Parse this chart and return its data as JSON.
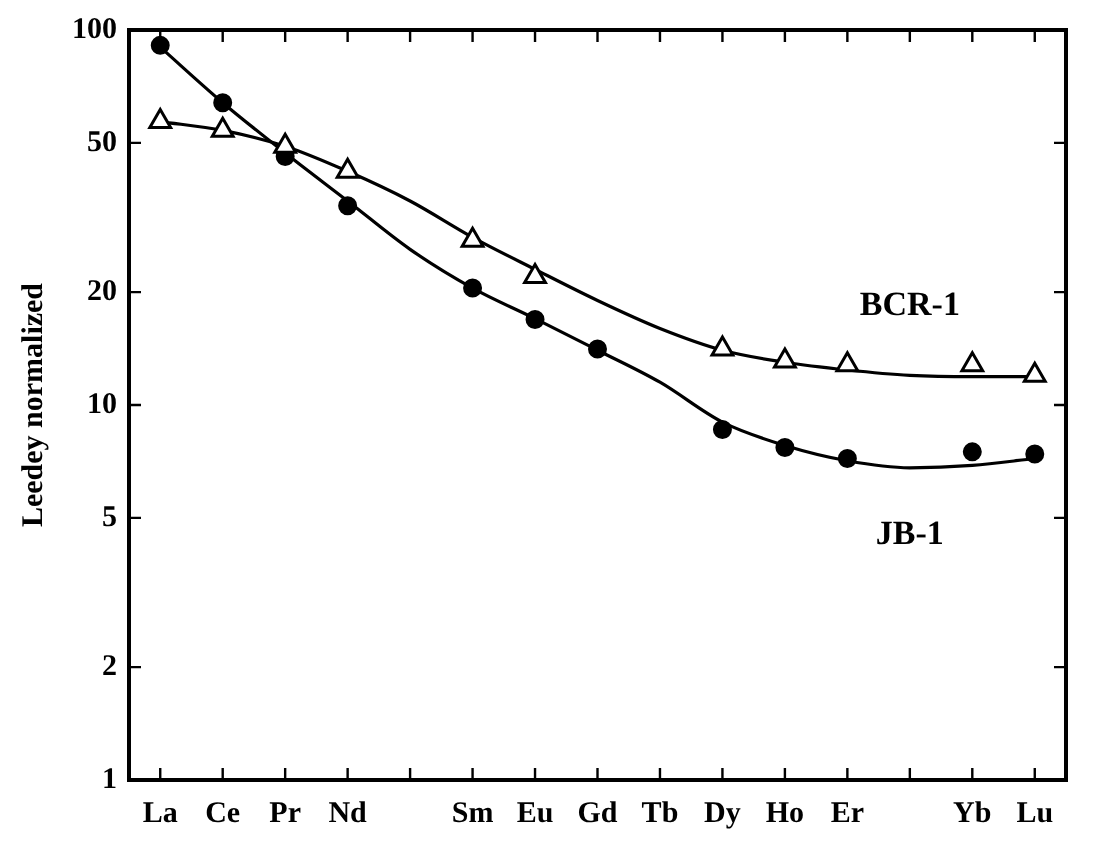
{
  "chart_data": {
    "type": "scatter",
    "ylabel": "Leedey normalized",
    "categories": [
      "La",
      "Ce",
      "Pr",
      "Nd",
      null,
      "Sm",
      "Eu",
      "Gd",
      "Tb",
      "Dy",
      "Ho",
      "Er",
      null,
      "Yb",
      "Lu"
    ],
    "series": [
      {
        "name": "BCR-1",
        "marker": "triangle",
        "color": "#000000",
        "values": [
          57,
          54,
          49,
          42,
          null,
          27.5,
          22,
          null,
          null,
          14.1,
          13.1,
          12.8,
          null,
          12.8,
          12
        ]
      },
      {
        "name": "JB-1",
        "marker": "circle",
        "color": "#000000",
        "values": [
          91,
          64,
          46,
          34,
          null,
          20.5,
          16.9,
          14.1,
          null,
          8.6,
          7.7,
          7.2,
          null,
          7.5,
          7.4
        ]
      },
      {
        "type": "line",
        "marker": "none",
        "color": "#000000",
        "values": [
          57,
          54,
          49,
          42,
          35,
          28,
          23,
          19,
          16,
          14,
          13,
          12.4,
          12,
          11.9,
          11.9
        ]
      },
      {
        "type": "line",
        "marker": "none",
        "color": "#000000",
        "values": [
          90,
          64,
          47,
          35,
          26,
          20.5,
          17,
          14,
          11.5,
          9,
          7.8,
          7.1,
          6.8,
          6.9,
          7.2
        ]
      }
    ],
    "log": "y",
    "ylim": [
      1,
      100
    ],
    "yticks": [
      1,
      2,
      5,
      10,
      20,
      50,
      100
    ],
    "grid": false,
    "legend": false
  }
}
